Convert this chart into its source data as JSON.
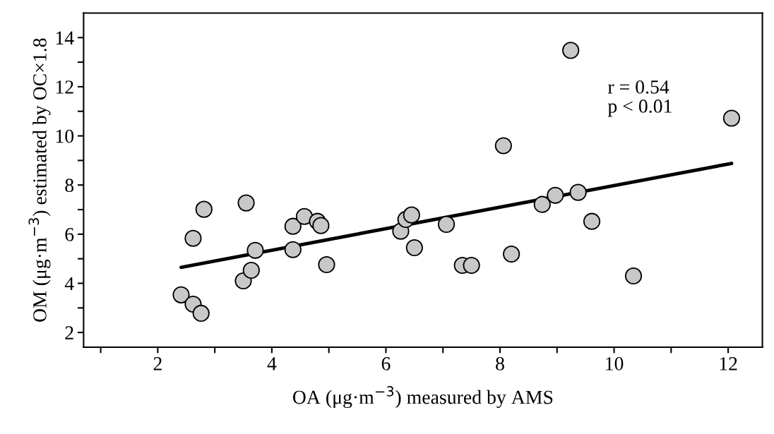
{
  "chart_data": {
    "type": "scatter",
    "xlabel": "OA (μg·m$^{−3}$) measured by AMS",
    "ylabel": "OM (μg·m$^{−3}$) estimated by OC×1.8",
    "annotations": [
      "r = 0.54\np < 0.01"
    ],
    "xlim": [
      0.7,
      12.6
    ],
    "ylim": [
      1.4,
      15
    ],
    "xticks": [
      {
        "value": 1,
        "label": null
      },
      2,
      {
        "value": 3,
        "label": null
      },
      4,
      {
        "value": 5,
        "label": null
      },
      6,
      {
        "value": 7,
        "label": null
      },
      8,
      {
        "value": 9,
        "label": null
      },
      10,
      {
        "value": 11,
        "label": null
      },
      12
    ],
    "yticks": [
      2,
      {
        "value": 3,
        "label": null
      },
      4,
      {
        "value": 5,
        "label": null
      },
      6,
      {
        "value": 7,
        "label": null
      },
      8,
      {
        "value": 9,
        "label": null
      },
      10,
      {
        "value": 11,
        "label": null
      },
      12,
      {
        "value": 13,
        "label": null
      },
      14
    ],
    "grid": false,
    "legend": false,
    "series": [
      {
        "color": "#c8c8c8",
        "marker": "circle",
        "x": [
          2.41,
          2.62,
          2.76,
          2.62,
          2.81,
          3.5,
          3.55,
          3.64,
          3.71,
          4.37,
          4.37,
          4.57,
          4.8,
          4.86,
          4.96,
          6.26,
          6.35,
          6.45,
          6.5,
          7.06,
          7.34,
          7.5,
          8.06,
          8.2,
          8.74,
          8.97,
          9.24,
          9.37,
          9.61,
          10.34,
          12.06
        ],
        "values": [
          3.53,
          3.15,
          2.78,
          5.83,
          7.01,
          4.1,
          7.27,
          4.53,
          5.34,
          5.37,
          6.32,
          6.72,
          6.52,
          6.35,
          4.76,
          6.12,
          6.6,
          6.78,
          5.45,
          6.4,
          4.73,
          4.73,
          9.6,
          5.19,
          7.21,
          7.58,
          13.48,
          7.7,
          6.52,
          4.3,
          10.72
        ]
      },
      {
        "type": "line",
        "color": "#000000",
        "line_style": "solid",
        "marker": "none",
        "x": [
          2.41,
          12.06
        ],
        "values": [
          4.65,
          8.88
        ]
      }
    ]
  }
}
